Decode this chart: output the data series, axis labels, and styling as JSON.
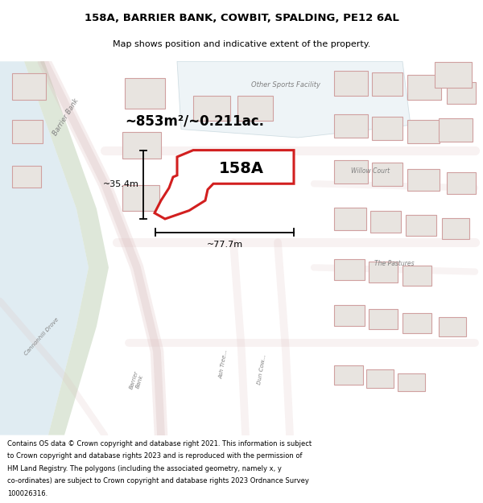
{
  "title_line1": "158A, BARRIER BANK, COWBIT, SPALDING, PE12 6AL",
  "title_line2": "Map shows position and indicative extent of the property.",
  "footer_text": "Contains OS data © Crown copyright and database right 2021. This information is subject to Crown copyright and database rights 2023 and is reproduced with the permission of HM Land Registry. The polygons (including the associated geometry, namely x, y co-ordinates) are subject to Crown copyright and database rights 2023 Ordnance Survey 100026316.",
  "area_label": "~853m²/~0.211ac.",
  "property_label": "158A",
  "dim_width": "~77.7m",
  "dim_height": "~35.4m",
  "map_bg": "#f2f0ed",
  "road_color": "#e8c8c8",
  "highlight_color": "#cc0000",
  "water_color": "#c8dde8",
  "green_color": "#c8d8c0",
  "building_fill": "#e8e4e0",
  "building_edge": "#d0a0a0",
  "sports_fill": "#e4eef2",
  "title_fontsize": 9.5,
  "subtitle_fontsize": 8,
  "footer_fontsize": 6.0,
  "area_fontsize": 12,
  "label_fontsize": 14,
  "dim_fontsize": 8,
  "street_fontsize": 6
}
